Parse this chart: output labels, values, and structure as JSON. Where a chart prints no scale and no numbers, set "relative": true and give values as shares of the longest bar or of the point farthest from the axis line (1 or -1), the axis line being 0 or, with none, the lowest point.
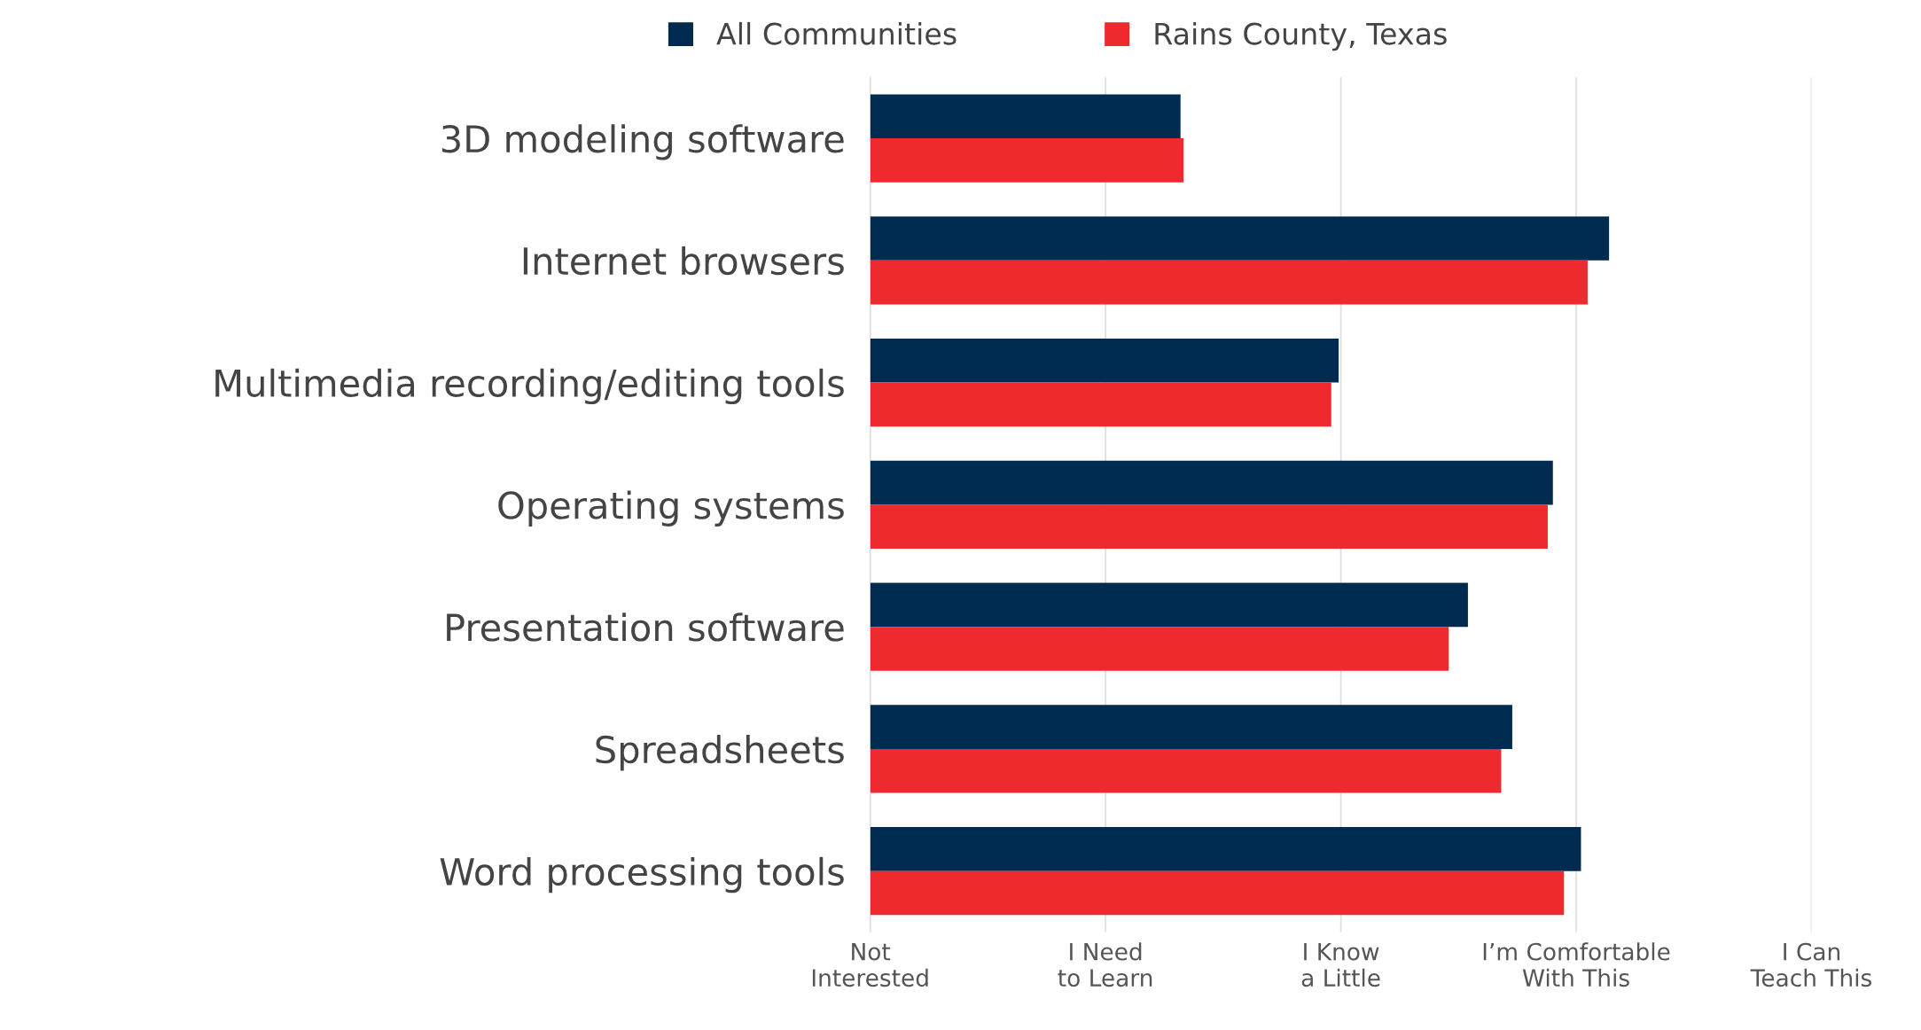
{
  "chart_data": {
    "type": "bar",
    "orientation": "horizontal",
    "relative": true,
    "categories": [
      "3D modeling software",
      "Internet browsers",
      "Multimedia recording/editing tools",
      "Operating systems",
      "Presentation software",
      "Spreadsheets",
      "Word processing tools"
    ],
    "series": [
      {
        "name": "All Communities",
        "color": "#002b50",
        "values": [
          0.42,
          1,
          0.634,
          0.924,
          0.809,
          0.869,
          0.962
        ]
      },
      {
        "name": "Rains County, Texas",
        "color": "#ee2a2e",
        "values": [
          0.424,
          0.971,
          0.624,
          0.917,
          0.783,
          0.854,
          0.939
        ]
      }
    ],
    "annotations": [
      "Not\nInterested",
      "I Need\nto Learn",
      "I Know\na Little",
      "I’m Comfortable\nWith This",
      "I Can\nTeach This"
    ],
    "grid": "x",
    "legend": "top"
  }
}
